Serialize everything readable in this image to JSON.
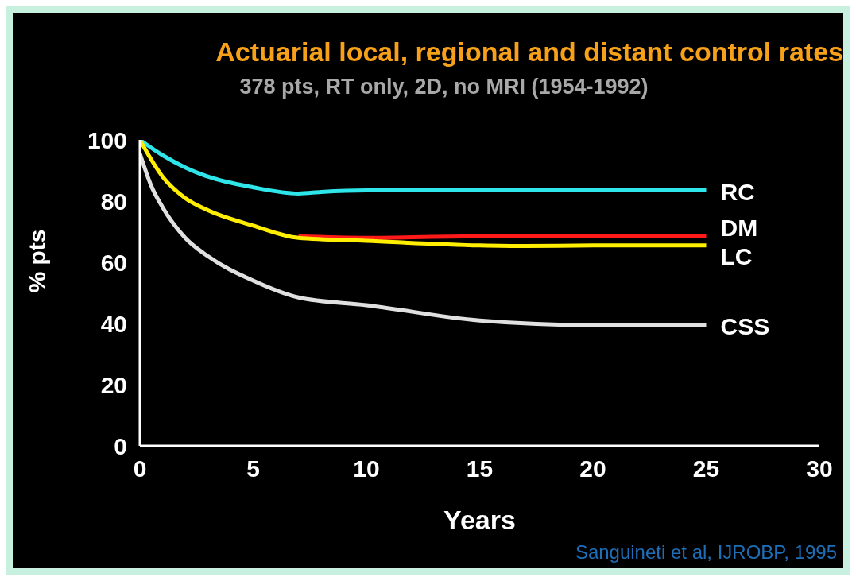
{
  "chart_data": {
    "type": "line",
    "title": "Actuarial local, regional and distant control rates",
    "subtitle": "378 pts, RT only, 2D, no MRI (1954-1992)",
    "xlabel": "Years",
    "ylabel": "% pts",
    "xlim": [
      0,
      30
    ],
    "xticks": [
      0,
      5,
      10,
      15,
      20,
      25,
      30
    ],
    "ylim": [
      0,
      100
    ],
    "yticks": [
      0,
      20,
      40,
      60,
      80,
      100
    ],
    "grid": false,
    "legend": false,
    "marker": "none",
    "line_style": "solid",
    "annotations": [
      "Sanguineti et al, IJROBP, 1995"
    ],
    "series": [
      {
        "name": "RC",
        "color": "#2ee6ea",
        "x": [
          0,
          1,
          2,
          3,
          5,
          7,
          8,
          10,
          15,
          20,
          25
        ],
        "values": [
          100,
          95,
          91,
          88,
          84.5,
          82.5,
          83,
          83.5,
          83.5,
          83.5,
          83.5
        ]
      },
      {
        "name": "DM",
        "color": "#ff1a1a",
        "x": [
          7,
          10,
          15,
          20,
          25
        ],
        "values": [
          68.5,
          68,
          68.5,
          68.5,
          68.5
        ]
      },
      {
        "name": "LC",
        "color": "#ffee00",
        "x": [
          0,
          1,
          2,
          3,
          5,
          7,
          10,
          15,
          17,
          20,
          25
        ],
        "values": [
          100,
          88,
          81,
          77,
          72,
          68,
          67,
          65.5,
          65.3,
          65.5,
          65.5
        ]
      },
      {
        "name": "CSS",
        "color": "#e0e0e0",
        "x": [
          0,
          0.5,
          1,
          2,
          3,
          5,
          7,
          10,
          15,
          20,
          25
        ],
        "values": [
          95.5,
          85,
          78,
          68,
          62,
          54,
          48.5,
          46,
          41,
          39.5,
          39.5
        ]
      }
    ]
  }
}
